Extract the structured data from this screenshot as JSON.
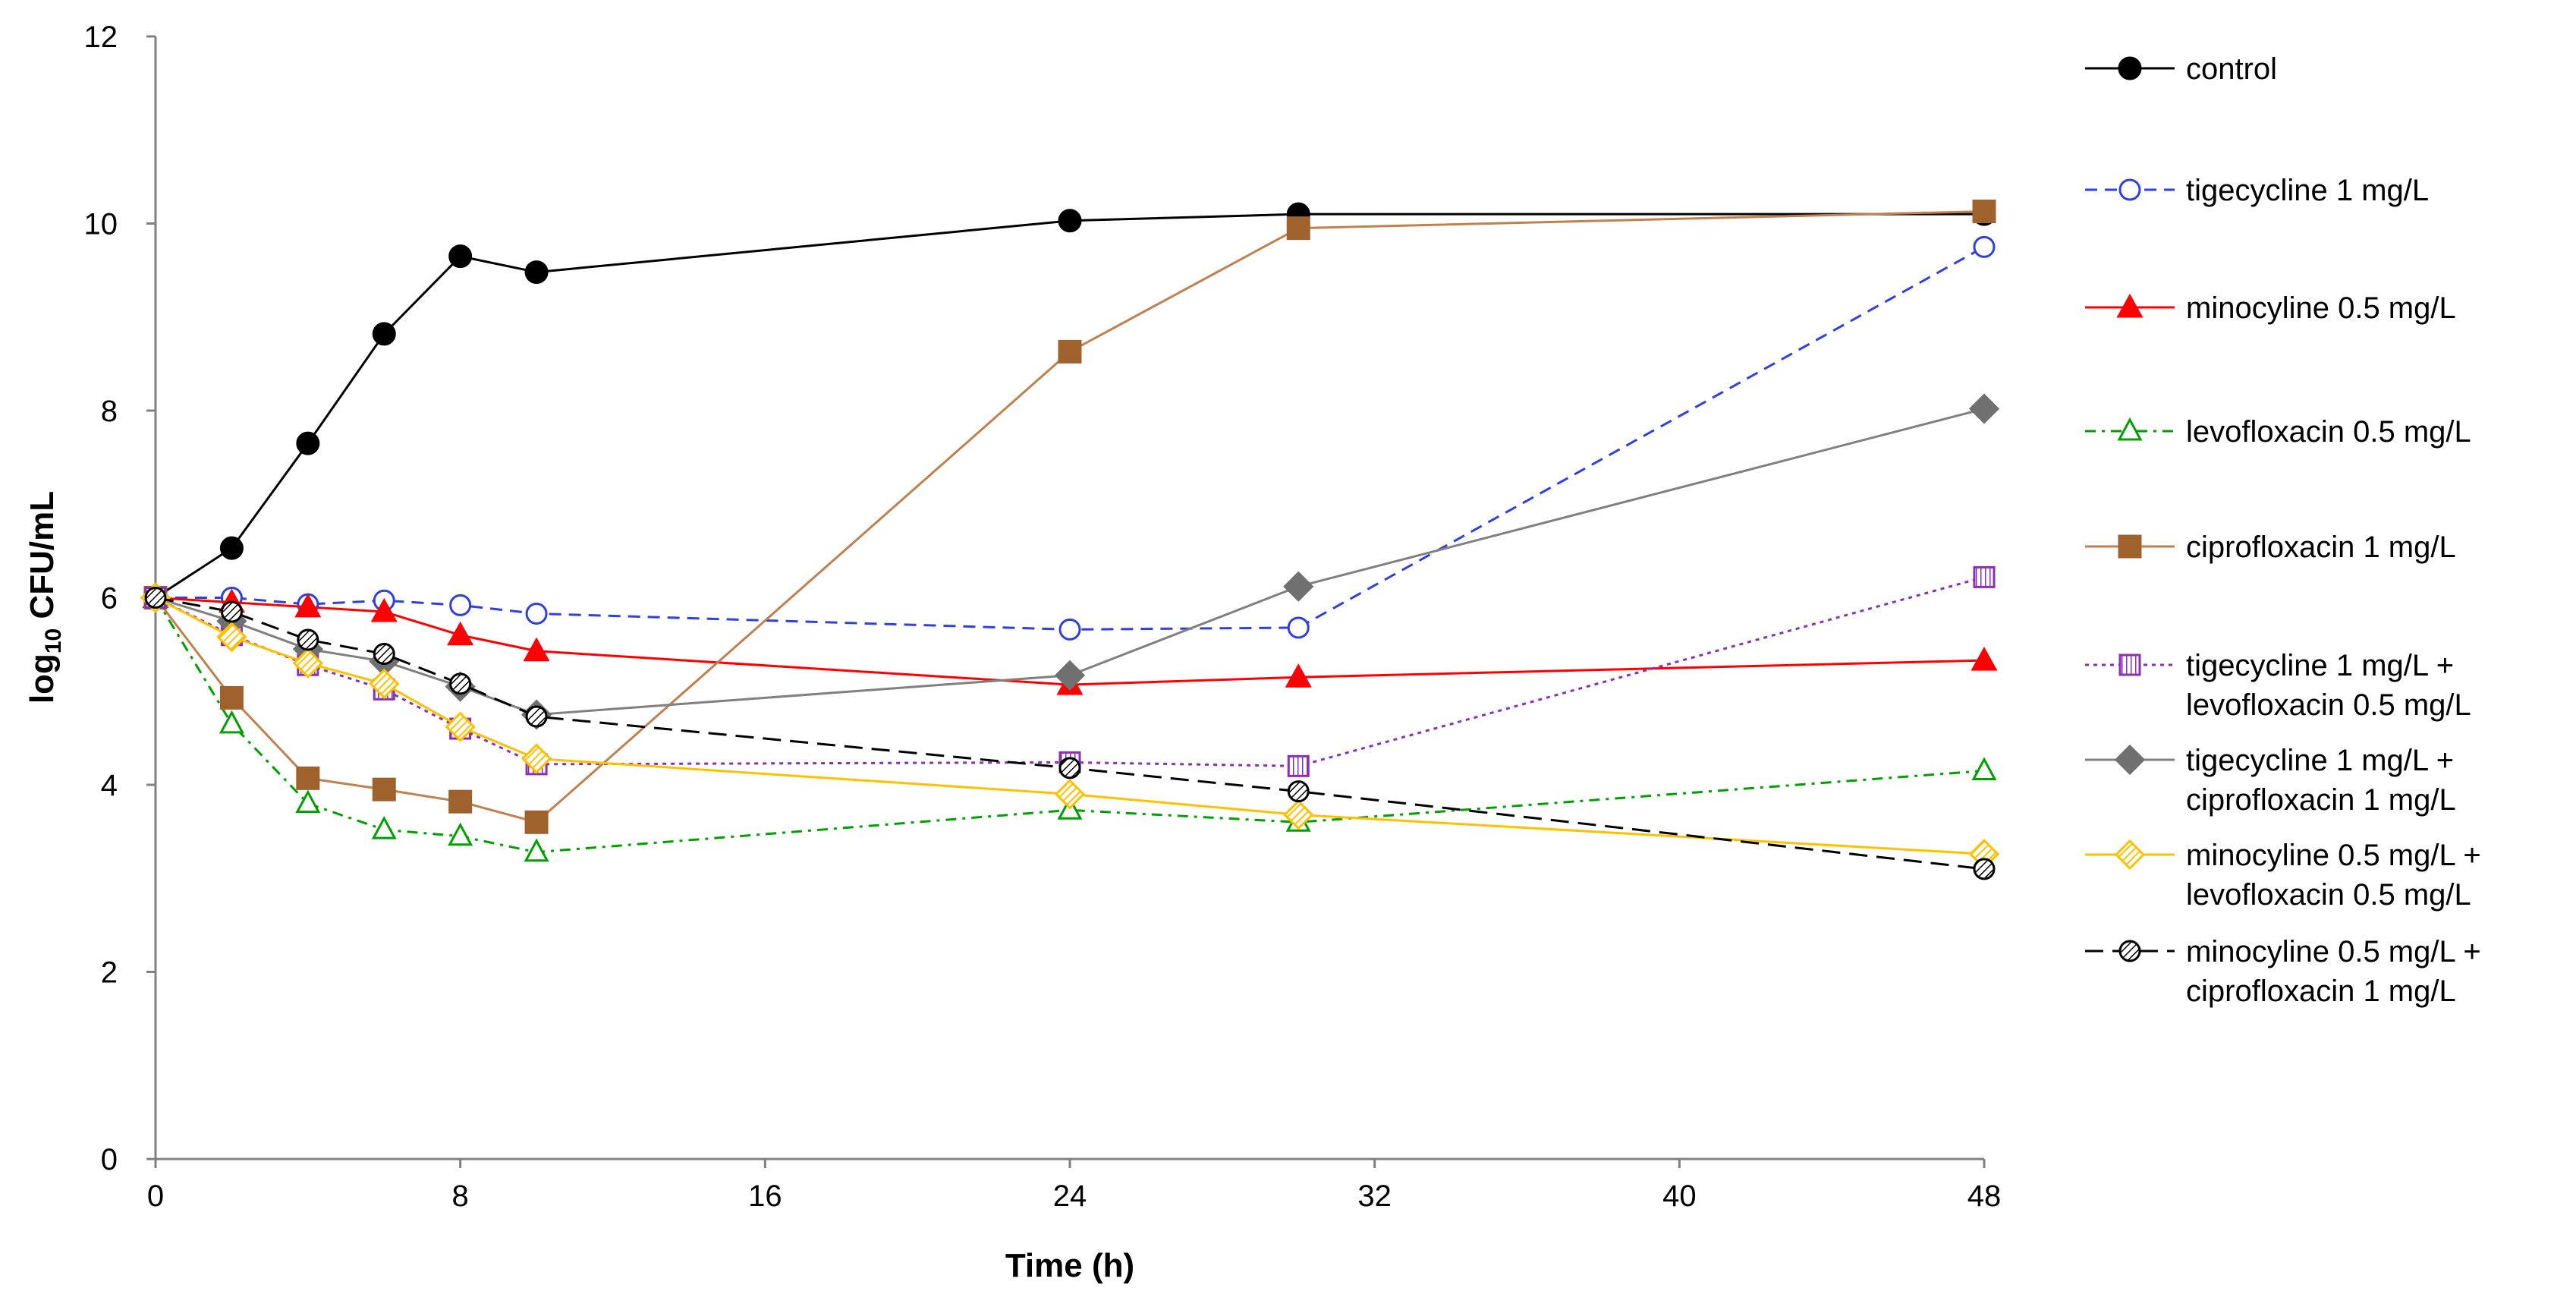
{
  "chart_data": {
    "type": "line",
    "title": "",
    "xlabel": "Time (h)",
    "ylabel_main": "log",
    "ylabel_sub": "10",
    "ylabel_rest": " CFU/mL",
    "xlim": [
      0,
      48
    ],
    "ylim": [
      0,
      12
    ],
    "xticks": [
      "0",
      "8",
      "16",
      "24",
      "32",
      "40",
      "48"
    ],
    "xtick_values": [
      0,
      8,
      16,
      24,
      32,
      40,
      48
    ],
    "yticks": [
      "0",
      "2",
      "4",
      "6",
      "8",
      "10",
      "12"
    ],
    "ytick_values": [
      0,
      2,
      4,
      6,
      8,
      10,
      12
    ],
    "grid": false,
    "legend_position": "right",
    "series": [
      {
        "name": "control",
        "label_lines": [
          "control"
        ],
        "color": "#000000",
        "dash": "solid",
        "marker": "circle-filled",
        "x": [
          0,
          2,
          4,
          6,
          8,
          10,
          24,
          30,
          48
        ],
        "y": [
          6.0,
          6.53,
          7.65,
          8.82,
          9.65,
          9.48,
          10.03,
          10.1,
          10.1
        ]
      },
      {
        "name": "tigecycline 1 mg/L",
        "label_lines": [
          "tigecycline 1 mg/L"
        ],
        "color": "#2f3fe0",
        "dash": "dashed",
        "marker": "circle-open",
        "x": [
          0,
          2,
          4,
          6,
          8,
          10,
          24,
          30,
          48
        ],
        "y": [
          6.0,
          6.0,
          5.93,
          5.97,
          5.92,
          5.83,
          5.66,
          5.68,
          9.75
        ]
      },
      {
        "name": "minocyline 0.5 mg/L",
        "label_lines": [
          "minocyline 0.5 mg/L"
        ],
        "color": "#ff0000",
        "dash": "solid",
        "marker": "triangle-filled",
        "x": [
          0,
          2,
          4,
          6,
          8,
          10,
          24,
          30,
          48
        ],
        "y": [
          6.0,
          5.95,
          5.9,
          5.85,
          5.6,
          5.43,
          5.07,
          5.15,
          5.33
        ]
      },
      {
        "name": "levofloxacin 0.5 mg/L",
        "label_lines": [
          "levofloxacin 0.5 mg/L"
        ],
        "color": "#00a000",
        "dash": "dashdot",
        "marker": "triangle-open",
        "x": [
          0,
          2,
          4,
          6,
          8,
          10,
          24,
          30,
          48
        ],
        "y": [
          6.0,
          4.65,
          3.8,
          3.52,
          3.45,
          3.28,
          3.73,
          3.6,
          4.15
        ]
      },
      {
        "name": "ciprofloxacin 1 mg/L",
        "label_lines": [
          "ciprofloxacin 1 mg/L"
        ],
        "color": "#c08050",
        "marker_color": "#a0622d",
        "dash": "solid",
        "marker": "square-filled",
        "x": [
          0,
          2,
          4,
          6,
          8,
          10,
          24,
          30,
          48
        ],
        "y": [
          6.0,
          4.93,
          4.07,
          3.95,
          3.82,
          3.6,
          8.63,
          9.95,
          10.13
        ]
      },
      {
        "name": "tigecycline 1 mg/L + levofloxacin 0.5 mg/L",
        "label_lines": [
          "tigecycline 1 mg/L +",
          "levofloxacin 0.5 mg/L"
        ],
        "color": "#8b2fb5",
        "dash": "dotted",
        "marker": "square-hatched",
        "x": [
          0,
          2,
          4,
          6,
          8,
          10,
          24,
          30,
          48
        ],
        "y": [
          6.0,
          5.6,
          5.28,
          5.02,
          4.6,
          4.22,
          4.24,
          4.2,
          6.22
        ]
      },
      {
        "name": "tigecycline 1 mg/L + ciprofloxacin 1 mg/L",
        "label_lines": [
          "tigecycline 1 mg/L +",
          "ciprofloxacin 1 mg/L"
        ],
        "color": "#808080",
        "marker_color": "#707070",
        "dash": "solid",
        "marker": "diamond-filled",
        "x": [
          0,
          2,
          4,
          6,
          8,
          10,
          24,
          30,
          48
        ],
        "y": [
          6.0,
          5.75,
          5.45,
          5.32,
          5.05,
          4.75,
          5.17,
          6.12,
          8.02
        ]
      },
      {
        "name": "minocyline 0.5 mg/L + levofloxacin 0.5 mg/L",
        "label_lines": [
          "minocyline 0.5 mg/L +",
          "levofloxacin 0.5 mg/L"
        ],
        "color": "#ffc000",
        "dash": "solid",
        "marker": "diamond-hatched",
        "x": [
          0,
          2,
          4,
          6,
          8,
          10,
          24,
          30,
          48
        ],
        "y": [
          6.0,
          5.58,
          5.3,
          5.08,
          4.62,
          4.28,
          3.9,
          3.68,
          3.26
        ]
      },
      {
        "name": "minocyline 0.5 mg/L + ciprofloxacin 1 mg/L",
        "label_lines": [
          "minocyline 0.5 mg/L +",
          "ciprofloxacin 1 mg/L"
        ],
        "color": "#000000",
        "dash": "longdash",
        "marker": "circle-hatched",
        "x": [
          0,
          2,
          4,
          6,
          8,
          10,
          24,
          30,
          48
        ],
        "y": [
          6.0,
          5.85,
          5.55,
          5.4,
          5.08,
          4.73,
          4.18,
          3.93,
          3.1
        ]
      }
    ]
  }
}
